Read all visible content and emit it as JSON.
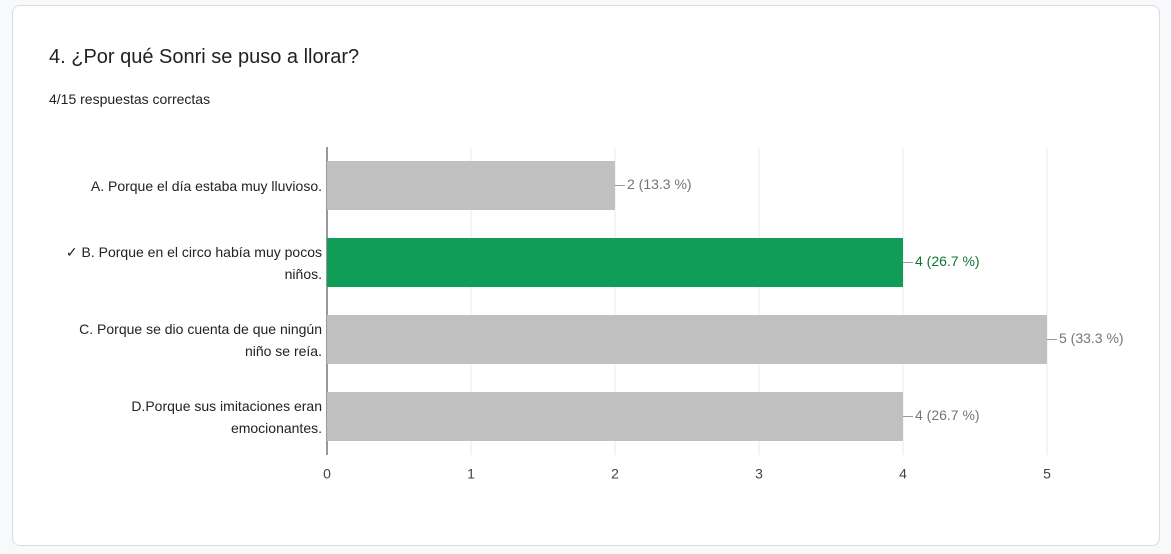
{
  "chart_data": {
    "type": "hbar",
    "title": "4. ¿Por qué Sonri se puso a llorar?",
    "subtitle": "4/15 respuestas correctas",
    "categories": [
      "A. Porque el día estaba muy lluvioso.",
      "✓ B. Porque en el circo había muy pocos niños.",
      "C. Porque se dio cuenta de que ningún niño se reía.",
      "D.Porque sus imitaciones eran emocionantes."
    ],
    "values": [
      2,
      4,
      5,
      4
    ],
    "value_labels": [
      "2 (13.3 %)",
      "4 (26.7 %)",
      "5 (33.3 %)",
      "4 (26.7 %)"
    ],
    "colors": [
      "#c0c0c0",
      "#0f9d58",
      "#c0c0c0",
      "#c0c0c0"
    ],
    "label_colors": [
      "#757575",
      "#137333",
      "#757575",
      "#757575"
    ],
    "xlim": [
      0,
      5
    ],
    "xticks": [
      0,
      1,
      2,
      3,
      4,
      5
    ],
    "grid": true
  }
}
